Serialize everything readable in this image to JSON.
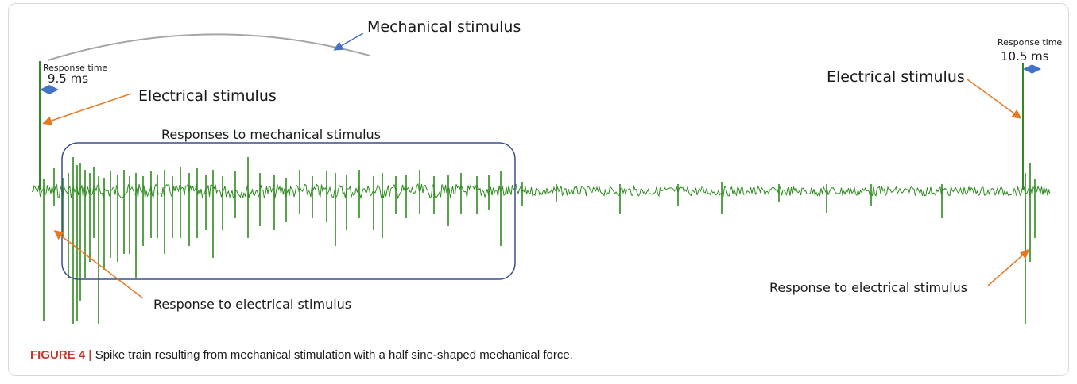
{
  "figure": {
    "label": "FIGURE 4 |",
    "caption": " Spike train resulting from mechanical stimulation with a half sine-shaped mechanical force."
  },
  "annotations": {
    "mechanical_stimulus": "Mechanical stimulus",
    "response_time_left_label": "Response time",
    "response_time_left_value": "9.5 ms",
    "response_time_right_label": "Response time",
    "response_time_right_value": "10.5 ms",
    "electrical_stimulus_left": "Electrical stimulus",
    "electrical_stimulus_right": "Electrical stimulus",
    "responses_to_mechanical": "Responses  to mechanical stimulus",
    "response_to_electrical_left": "Response  to electrical stimulus",
    "response_to_electrical_right": "Response  to electrical stimulus"
  },
  "colors": {
    "trace": "#2e8b1f",
    "arrow_orange": "#e87722",
    "arrow_blue": "#4472c4",
    "box": "#3b4f8a",
    "stimulus_curve": "#a6a6a6"
  }
}
